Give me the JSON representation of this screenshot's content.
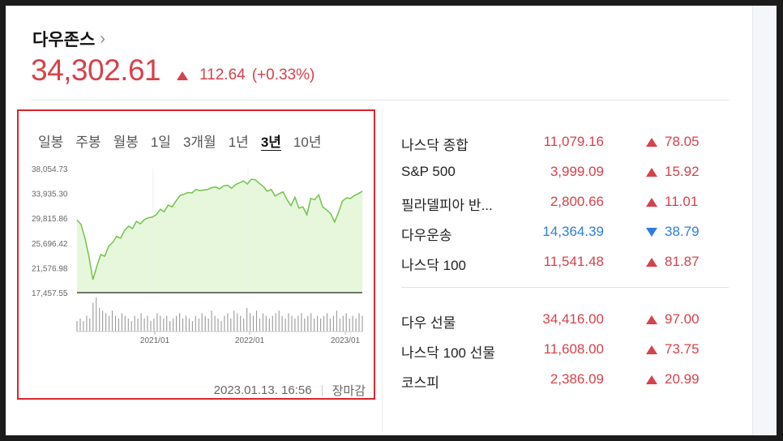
{
  "header": {
    "title": "다우존스",
    "chevron": "›",
    "price": "34,302.61",
    "change_value": "112.64",
    "change_pct": "(+0.33%)",
    "direction": "up"
  },
  "chart": {
    "tabs": [
      {
        "label": "일봉",
        "active": false
      },
      {
        "label": "주봉",
        "active": false
      },
      {
        "label": "월봉",
        "active": false
      },
      {
        "label": "1일",
        "active": false
      },
      {
        "label": "3개월",
        "active": false
      },
      {
        "label": "1년",
        "active": false
      },
      {
        "label": "3년",
        "active": true
      },
      {
        "label": "10년",
        "active": false
      }
    ],
    "timestamp": "2023.01.13. 16:56",
    "status": "장마감"
  },
  "chart_data": {
    "type": "area",
    "y_ticks": [
      "38,054.73",
      "33,935.30",
      "29,815.86",
      "25,696.42",
      "21,576.98",
      "17,457.55"
    ],
    "x_ticks": [
      "2021/01",
      "2022/01",
      "2023/01"
    ],
    "ylim": [
      17457.55,
      38054.73
    ],
    "series": [
      {
        "values": [
          29500,
          28800,
          26500,
          23500,
          19600,
          21800,
          23800,
          23500,
          25200,
          25800,
          26800,
          26500,
          27800,
          28500,
          28100,
          29300,
          28900,
          29600,
          29900,
          30000,
          30400,
          31300,
          30900,
          32000,
          31700,
          32700,
          33600,
          33800,
          34100,
          34000,
          34600,
          34400,
          34500,
          34600,
          34900,
          35000,
          34700,
          35200,
          35300,
          34800,
          35400,
          35700,
          36000,
          35500,
          36300,
          36200,
          35600,
          35100,
          34300,
          34600,
          33500,
          33900,
          34200,
          32900,
          31900,
          33300,
          31500,
          31700,
          30400,
          33100,
          32900,
          33700,
          31700,
          31200,
          30600,
          29200,
          30800,
          32700,
          33200,
          33100,
          33600,
          33900,
          34302.61
        ]
      }
    ],
    "volume": [
      4,
      5,
      4,
      6,
      5,
      11,
      13,
      9,
      8,
      7,
      6,
      8,
      6,
      5,
      7,
      6,
      5,
      4,
      6,
      5,
      7,
      5,
      6,
      4,
      5,
      7,
      6,
      5,
      6,
      4,
      5,
      6,
      7,
      5,
      6,
      5,
      4,
      6,
      5,
      7,
      6,
      5,
      8,
      6,
      5,
      4,
      6,
      7,
      5,
      8,
      7,
      6,
      5,
      9,
      7,
      6,
      8,
      5,
      7,
      6,
      5,
      6,
      7,
      8,
      6,
      5,
      7,
      6,
      5,
      6,
      7,
      5,
      6,
      7,
      5,
      6,
      5,
      6,
      7,
      5,
      6,
      8,
      5,
      6,
      7,
      5,
      6,
      5,
      7,
      6
    ],
    "line_color": "#72c34b",
    "fill_color": "#e6f7dc",
    "grid": false
  },
  "indices": {
    "group1": [
      {
        "name": "나스닥 종합",
        "value": "11,079.16",
        "change": "78.05",
        "direction": "up"
      },
      {
        "name": "S&P 500",
        "value": "3,999.09",
        "change": "15.92",
        "direction": "up"
      },
      {
        "name": "필라델피아 반...",
        "value": "2,800.66",
        "change": "11.01",
        "direction": "up"
      },
      {
        "name": "다우운송",
        "value": "14,364.39",
        "change": "38.79",
        "direction": "down"
      },
      {
        "name": "나스닥 100",
        "value": "11,541.48",
        "change": "81.87",
        "direction": "up"
      }
    ],
    "group2": [
      {
        "name": "다우 선물",
        "value": "34,416.00",
        "change": "97.00",
        "direction": "up"
      },
      {
        "name": "나스닥 100 선물",
        "value": "11,608.00",
        "change": "73.75",
        "direction": "up"
      },
      {
        "name": "코스피",
        "value": "2,386.09",
        "change": "20.99",
        "direction": "up"
      }
    ]
  },
  "colors": {
    "up": "#d6424b",
    "down": "#2d7ee0",
    "highlight_border": "#d8262c"
  }
}
